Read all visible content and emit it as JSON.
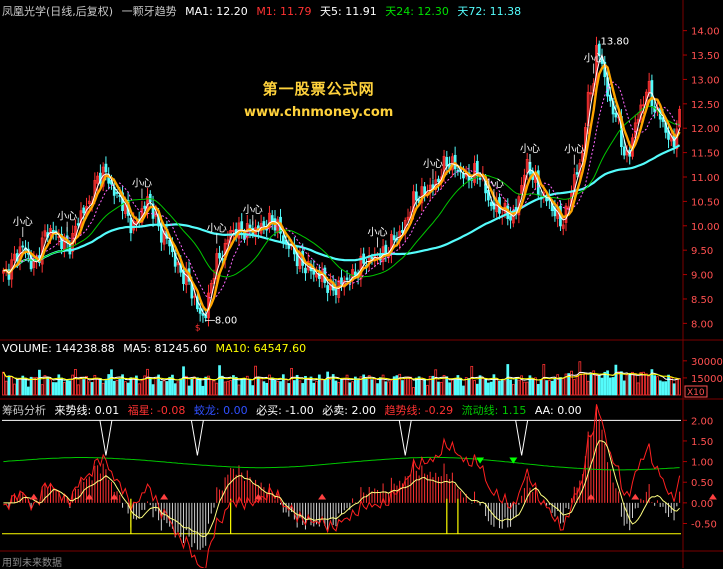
{
  "header": {
    "name": "凤凰光学(日线,后复权)",
    "indicator": "一颗牙趋势",
    "ma1_label": "MA1: 12.20",
    "m1_label": "M1: 11.79",
    "t5_label": "天5: 11.91",
    "t24_label": "天24: 12.30",
    "t72_label": "天72: 11.38"
  },
  "watermark": {
    "line1": "第一股票公式网",
    "line2": "www.chnmoney.com"
  },
  "volume_header": {
    "volume": "VOLUME: 144238.88",
    "ma5": "MA5: 81245.60",
    "ma10": "MA10: 64547.60"
  },
  "indicator_header": {
    "name": "筹码分析",
    "laishi": "来势线: 0.01",
    "fuxing": "福星: -0.08",
    "jiaolong": "蛟龙: 0.00",
    "bimai": "必买: -1.00",
    "bimai2": "必卖: 2.00",
    "qushi": "趋势线: -0.29",
    "liushi": "流动线: 1.15",
    "aa": "AA: 0.00"
  },
  "footer": {
    "text": "用到未来数据"
  },
  "colors": {
    "up": "#ff3232",
    "down": "#54fcfc",
    "ma_orange": "#ffa500",
    "ma_white": "#ffffff",
    "ma_green": "#00c800",
    "ma_magenta": "#ff66ff",
    "ma_cyan": "#54fcfc",
    "watermark": "#ffd23c",
    "grid": "#7a0000"
  },
  "chart_data": [
    {
      "type": "candlestick",
      "panel": "price",
      "ylim": [
        7.7,
        14.3
      ],
      "y_ticks": [
        "14.00",
        "13.50",
        "13.00",
        "12.50",
        "12.00",
        "11.50",
        "11.00",
        "10.50",
        "10.00",
        "9.50",
        "9.00",
        "8.50",
        "8.00"
      ],
      "annotations": [
        {
          "label": "小心",
          "index": 8,
          "price": 9.6
        },
        {
          "label": "小心",
          "index": 26,
          "price": 9.55
        },
        {
          "label": "小心",
          "index": 55,
          "price": 11.4
        },
        {
          "label": "小心",
          "index": 85,
          "price": 9.7
        },
        {
          "label": "小心",
          "index": 100,
          "price": 9.85
        },
        {
          "label": "小心",
          "index": 150,
          "price": 10.3
        },
        {
          "label": "小心",
          "index": 172,
          "price": 11.45
        },
        {
          "label": "小心",
          "index": 196,
          "price": 11.4
        },
        {
          "label": "小心",
          "index": 211,
          "price": 11.35
        },
        {
          "label": "小心",
          "index": 229,
          "price": 11.4
        },
        {
          "label": "小心",
          "index": 237,
          "price": 13.9
        }
      ],
      "value_labels": [
        {
          "text": "13.80",
          "index": 238,
          "price": 13.78
        },
        {
          "text": "8.00",
          "index": 80,
          "price": 8.0
        }
      ],
      "lines": [
        "MA1",
        "M1",
        "天5",
        "天24",
        "天72"
      ]
    },
    {
      "type": "bar",
      "panel": "volume",
      "y_ticks": [
        "30000",
        "15000"
      ],
      "scale_label": "X10",
      "series": [
        "VOLUME",
        "MA5",
        "MA10"
      ]
    },
    {
      "type": "line",
      "panel": "indicator",
      "y_ticks": [
        "2.00",
        "1.50",
        "1.00",
        "0.50",
        "0.00",
        "-0.50"
      ],
      "series": [
        "来势线",
        "福星",
        "蛟龙",
        "必买",
        "必卖",
        "趋势线",
        "流动线",
        "AA"
      ]
    }
  ]
}
